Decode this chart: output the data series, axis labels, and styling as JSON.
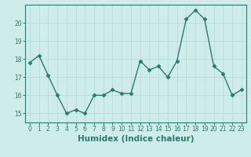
{
  "x": [
    0,
    1,
    2,
    3,
    4,
    5,
    6,
    7,
    8,
    9,
    10,
    11,
    12,
    13,
    14,
    15,
    16,
    17,
    18,
    19,
    20,
    21,
    22,
    23
  ],
  "y": [
    17.8,
    18.2,
    17.1,
    16.0,
    15.0,
    15.2,
    15.0,
    16.0,
    16.0,
    16.3,
    16.1,
    16.1,
    17.9,
    17.4,
    17.6,
    17.0,
    17.9,
    20.2,
    20.7,
    20.2,
    17.6,
    17.2,
    16.0,
    16.3
  ],
  "line_color": "#2a7a6f",
  "marker": "D",
  "marker_size": 2.5,
  "linewidth": 1.0,
  "xlabel": "Humidex (Indice chaleur)",
  "xlabel_fontsize": 7.5,
  "background_color": "#ceecea",
  "grid_color": "#b8dbd9",
  "spine_color": "#2a7a6f",
  "ylim": [
    14.5,
    21.0
  ],
  "xlim": [
    -0.5,
    23.5
  ],
  "yticks": [
    15,
    16,
    17,
    18,
    19,
    20
  ],
  "xticks": [
    0,
    1,
    2,
    3,
    4,
    5,
    6,
    7,
    8,
    9,
    10,
    11,
    12,
    13,
    14,
    15,
    16,
    17,
    18,
    19,
    20,
    21,
    22,
    23
  ],
  "tick_fontsize": 5.5,
  "tick_color": "#2a7a6f"
}
